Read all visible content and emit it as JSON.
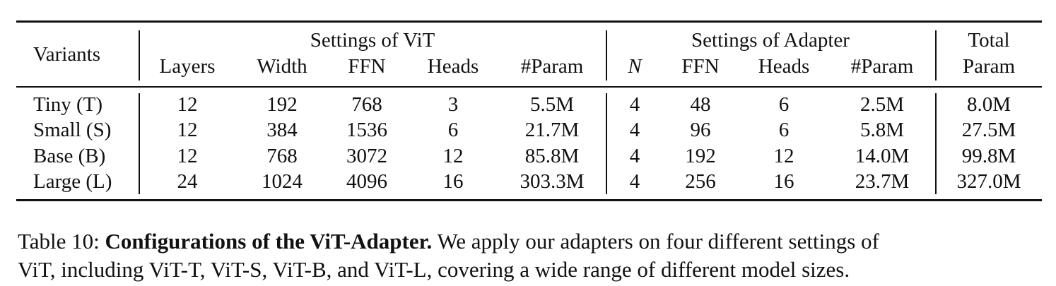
{
  "table": {
    "group_headers": {
      "variants": "Variants",
      "vit": "Settings of ViT",
      "adapter": "Settings of Adapter",
      "total_line1": "Total",
      "total_line2": "Param"
    },
    "sub_headers": {
      "layers": "Layers",
      "width": "Width",
      "vit_ffn": "FFN",
      "vit_heads": "Heads",
      "vit_param": "#Param",
      "n": "N",
      "adapter_ffn": "FFN",
      "adapter_heads": "Heads",
      "adapter_param": "#Param"
    },
    "rows": [
      [
        "Tiny (T)",
        "12",
        "192",
        "768",
        "3",
        "5.5M",
        "4",
        "48",
        "6",
        "2.5M",
        "8.0M"
      ],
      [
        "Small (S)",
        "12",
        "384",
        "1536",
        "6",
        "21.7M",
        "4",
        "96",
        "6",
        "5.8M",
        "27.5M"
      ],
      [
        "Base (B)",
        "12",
        "768",
        "3072",
        "12",
        "85.8M",
        "4",
        "192",
        "12",
        "14.0M",
        "99.8M"
      ],
      [
        "Large (L)",
        "24",
        "1024",
        "4096",
        "16",
        "303.3M",
        "4",
        "256",
        "16",
        "23.7M",
        "327.0M"
      ]
    ]
  },
  "caption": {
    "label": "Table 10:",
    "title": "Configurations of the ViT-Adapter.",
    "text_line1": "We apply our adapters on four different settings of",
    "text_line2": "ViT, including ViT-T, ViT-S, ViT-B, and ViT-L, covering a wide range of different model sizes."
  }
}
